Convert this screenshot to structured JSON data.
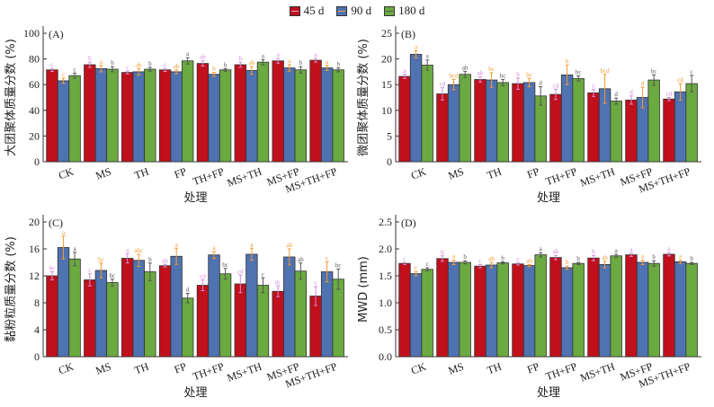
{
  "legend": [
    {
      "label": "45 d",
      "color": "#c0101c",
      "line": "#e8a0d8"
    },
    {
      "label": "90 d",
      "color": "#4f72b0",
      "line": "#f0a040"
    },
    {
      "label": "180 d",
      "color": "#6aaa40",
      "line": "#555555"
    }
  ],
  "sig_colors": [
    "#d48ad8",
    "#f59a30",
    "#555555"
  ],
  "chart_data": [
    {
      "type": "bar",
      "panel": "(A)",
      "xlabel": "处理",
      "ylabel": "大团聚体质量分数 (%)",
      "ylim": [
        0,
        100
      ],
      "yticks": [
        0,
        20,
        40,
        60,
        80,
        100
      ],
      "categories": [
        "CK",
        "MS",
        "TH",
        "FP",
        "TH+FP",
        "MS+TH",
        "MS+FP",
        "MS+TH+FP"
      ],
      "series": [
        {
          "name": "45 d",
          "values": [
            71.5,
            75.5,
            69.5,
            71.5,
            76.5,
            75.5,
            78.5,
            79.0
          ],
          "errors": [
            1.2,
            2.0,
            1.2,
            1.2,
            2.0,
            2.0,
            1.8,
            1.5
          ],
          "letters": [
            "c",
            "b",
            "c",
            "c",
            "ab",
            "b",
            "a",
            "a"
          ]
        },
        {
          "name": "90 d",
          "values": [
            63.0,
            72.5,
            70.0,
            70.0,
            68.0,
            71.0,
            73.0,
            73.0
          ],
          "errors": [
            2.0,
            2.5,
            2.5,
            1.5,
            1.5,
            3.0,
            2.5,
            2.0
          ],
          "letters": [
            "c",
            "a",
            "ab",
            "ab",
            "b",
            "ab",
            "a",
            "a"
          ]
        },
        {
          "name": "180 d",
          "values": [
            67.0,
            72.0,
            72.0,
            78.5,
            71.5,
            77.5,
            71.5,
            71.5
          ],
          "errors": [
            2.0,
            2.0,
            1.5,
            2.5,
            1.0,
            2.0,
            2.5,
            1.5
          ],
          "letters": [
            "c",
            "b",
            "b",
            "a",
            "b",
            "a",
            "b",
            "b"
          ]
        }
      ]
    },
    {
      "type": "bar",
      "panel": "(B)",
      "xlabel": "处理",
      "ylabel": "微团聚体质量分数 (%)",
      "ylim": [
        0,
        25
      ],
      "yticks": [
        0,
        5,
        10,
        15,
        20,
        25
      ],
      "categories": [
        "CK",
        "MS",
        "TH",
        "FP",
        "TH+FP",
        "MS+TH",
        "MS+FP",
        "MS+TH+FP"
      ],
      "series": [
        {
          "name": "45 d",
          "values": [
            16.6,
            13.2,
            16.0,
            15.2,
            13.1,
            13.4,
            12.0,
            12.2
          ],
          "errors": [
            0.4,
            1.2,
            0.5,
            1.1,
            1.0,
            0.7,
            0.8,
            0.3
          ],
          "letters": [
            "a",
            "cd",
            "ab",
            "b",
            "cd",
            "c",
            "d",
            "cd"
          ]
        },
        {
          "name": "90 d",
          "values": [
            20.9,
            15.0,
            15.9,
            15.4,
            16.9,
            14.2,
            12.5,
            13.6
          ],
          "errors": [
            0.7,
            1.0,
            1.4,
            0.8,
            1.9,
            2.8,
            2.0,
            1.6
          ],
          "letters": [
            "a",
            "bcd",
            "bc",
            "bc",
            "b",
            "bcd",
            "d",
            "cd"
          ]
        },
        {
          "name": "180 d",
          "values": [
            18.8,
            17.0,
            15.4,
            12.8,
            16.2,
            11.8,
            15.9,
            15.2
          ],
          "errors": [
            1.0,
            0.6,
            0.6,
            1.8,
            0.5,
            0.6,
            1.0,
            1.6
          ],
          "letters": [
            "a",
            "ab",
            "bc",
            "d",
            "bc",
            "d",
            "bc",
            "c"
          ]
        }
      ]
    },
    {
      "type": "bar",
      "panel": "(C)",
      "xlabel": "处理",
      "ylabel": "黏粉粒质量分数 (%)",
      "ylim": [
        0,
        20
      ],
      "yticks": [
        0,
        4,
        8,
        12,
        16,
        20
      ],
      "categories": [
        "CK",
        "MS",
        "TH",
        "FP",
        "TH+FP",
        "MS+TH",
        "MS+FP",
        "MS+TH+FP"
      ],
      "series": [
        {
          "name": "45 d",
          "values": [
            12.0,
            11.4,
            14.6,
            13.5,
            10.6,
            10.8,
            9.7,
            9.0
          ],
          "errors": [
            0.6,
            0.9,
            0.7,
            0.2,
            0.8,
            1.3,
            0.8,
            1.4
          ],
          "letters": [
            "bc",
            "c",
            "a",
            "ab",
            "cd",
            "cd",
            "dc",
            "c"
          ]
        },
        {
          "name": "90 d",
          "values": [
            16.2,
            12.8,
            14.3,
            14.9,
            15.1,
            15.2,
            14.8,
            12.6
          ],
          "errors": [
            1.7,
            1.1,
            0.9,
            1.2,
            0.5,
            0.9,
            1.2,
            1.5
          ],
          "letters": [
            "a",
            "bc",
            "abc",
            "a",
            "a",
            "a",
            "ab",
            "c"
          ]
        },
        {
          "name": "180 d",
          "values": [
            14.5,
            11.0,
            12.6,
            8.7,
            12.3,
            10.6,
            12.7,
            11.5
          ],
          "errors": [
            1.0,
            0.5,
            1.3,
            0.7,
            0.8,
            1.1,
            1.2,
            1.5
          ],
          "letters": [
            "a",
            "bc",
            "b",
            "d",
            "bc",
            "c",
            "ab",
            "bc"
          ]
        }
      ]
    },
    {
      "type": "bar",
      "panel": "(D)",
      "xlabel": "处理",
      "ylabel": "MWD (mm)",
      "ylim": [
        0,
        2.5
      ],
      "yticks": [
        "0.0",
        "0.5",
        "1.0",
        "1.5",
        "2.0",
        "2.5"
      ],
      "categories": [
        "CK",
        "MS",
        "TH",
        "FP",
        "TH+FP",
        "MS+TH",
        "MS+FP",
        "MS+TH+FP"
      ],
      "series": [
        {
          "name": "45 d",
          "values": [
            1.73,
            1.82,
            1.68,
            1.72,
            1.84,
            1.83,
            1.89,
            1.9
          ],
          "errors": [
            0.02,
            0.05,
            0.03,
            0.02,
            0.04,
            0.05,
            0.03,
            0.03
          ],
          "letters": [
            "c",
            "b",
            "c",
            "c",
            "ab",
            "b",
            "a",
            "a"
          ]
        },
        {
          "name": "90 d",
          "values": [
            1.54,
            1.75,
            1.7,
            1.69,
            1.65,
            1.71,
            1.75,
            1.76
          ],
          "errors": [
            0.04,
            0.04,
            0.05,
            0.02,
            0.03,
            0.06,
            0.04,
            0.03
          ],
          "letters": [
            "c",
            "a",
            "ab",
            "ab",
            "b",
            "ab",
            "a",
            "a"
          ]
        },
        {
          "name": "180 d",
          "values": [
            1.62,
            1.75,
            1.74,
            1.89,
            1.73,
            1.87,
            1.73,
            1.73
          ],
          "errors": [
            0.03,
            0.03,
            0.02,
            0.04,
            0.02,
            0.03,
            0.05,
            0.02
          ],
          "letters": [
            "c",
            "b",
            "b",
            "a",
            "b",
            "a",
            "b",
            "b"
          ]
        }
      ]
    }
  ]
}
